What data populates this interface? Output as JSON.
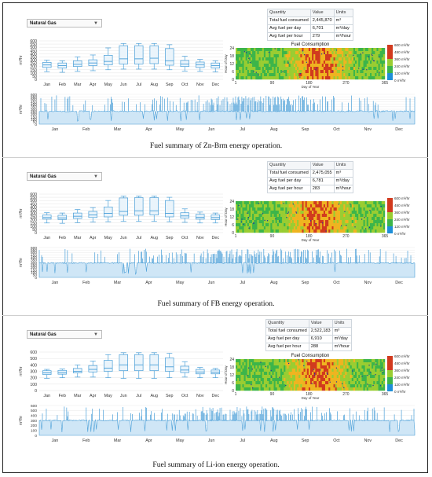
{
  "panels": [
    {
      "dropdown_value": "Natural Gas",
      "caption": "Fuel summary of Zn-Brm energy operation.",
      "table": {
        "headers": [
          "Quantity",
          "Value",
          "Units"
        ],
        "rows": [
          [
            "Total fuel consumed",
            "2,445,870",
            "m³"
          ],
          [
            "Avg fuel per day",
            "6,701",
            "m³/day"
          ],
          [
            "Avg fuel per hour",
            "279",
            "m³/hour"
          ]
        ]
      }
    },
    {
      "dropdown_value": "Natural Gas",
      "caption": "Fuel summary of FB energy operation.",
      "table": {
        "headers": [
          "Quantity",
          "Value",
          "Units"
        ],
        "rows": [
          [
            "Total fuel consumed",
            "2,475,055",
            "m³"
          ],
          [
            "Avg fuel per day",
            "6,781",
            "m³/day"
          ],
          [
            "Avg fuel per hour",
            "283",
            "m³/hour"
          ]
        ]
      }
    },
    {
      "dropdown_value": "Natural Gas",
      "caption": "Fuel summary of Li-ion energy operation.",
      "table": {
        "headers": [
          "Quantity",
          "Value",
          "Units"
        ],
        "rows": [
          [
            "Total fuel consumed",
            "2,522,183",
            "m³"
          ],
          [
            "Avg fuel per day",
            "6,910",
            "m³/day"
          ],
          [
            "Avg fuel per hour",
            "288",
            "m³/hour"
          ]
        ]
      }
    }
  ],
  "chart_data": [
    {
      "type": "box",
      "panel": 0,
      "categories": [
        "Jan",
        "Feb",
        "Mar",
        "Apr",
        "May",
        "Jun",
        "Jul",
        "Aug",
        "Sep",
        "Oct",
        "Nov",
        "Dec"
      ],
      "ylabel": "m³/hr",
      "ylim": [
        0,
        600
      ],
      "yticks": [
        0,
        50,
        100,
        150,
        200,
        250,
        300,
        350,
        400,
        450,
        500,
        550,
        600
      ],
      "boxes": [
        {
          "whisker_low": 120,
          "q1": 185,
          "median": 225,
          "q3": 265,
          "whisker_high": 300
        },
        {
          "whisker_low": 110,
          "q1": 175,
          "median": 215,
          "q3": 255,
          "whisker_high": 290
        },
        {
          "whisker_low": 125,
          "q1": 200,
          "median": 235,
          "q3": 290,
          "whisker_high": 350
        },
        {
          "whisker_low": 135,
          "q1": 215,
          "median": 255,
          "q3": 305,
          "whisker_high": 380
        },
        {
          "whisker_low": 150,
          "q1": 225,
          "median": 280,
          "q3": 375,
          "whisker_high": 490
        },
        {
          "whisker_low": 160,
          "q1": 240,
          "median": 320,
          "q3": 525,
          "whisker_high": 560
        },
        {
          "whisker_low": 160,
          "q1": 240,
          "median": 320,
          "q3": 525,
          "whisker_high": 560
        },
        {
          "whisker_low": 160,
          "q1": 245,
          "median": 330,
          "q3": 525,
          "whisker_high": 560
        },
        {
          "whisker_low": 150,
          "q1": 220,
          "median": 290,
          "q3": 480,
          "whisker_high": 540
        },
        {
          "whisker_low": 130,
          "q1": 200,
          "median": 240,
          "q3": 295,
          "whisker_high": 360
        },
        {
          "whisker_low": 125,
          "q1": 185,
          "median": 230,
          "q3": 270,
          "whisker_high": 310
        },
        {
          "whisker_low": 115,
          "q1": 175,
          "median": 215,
          "q3": 255,
          "whisker_high": 290
        }
      ]
    },
    {
      "type": "heatmap",
      "panel": 0,
      "title": "Fuel Consumption",
      "xlabel": "Day of Year",
      "ylabel": "Hour of Day",
      "xticks": [
        1,
        90,
        180,
        270,
        365
      ],
      "yticks": [
        0,
        6,
        12,
        18,
        24
      ],
      "colorbar": {
        "ticks": [
          0,
          120,
          240,
          360,
          480,
          600
        ],
        "labels": [
          "0 m³/hr",
          "120 m³/hr",
          "240 m³/hr",
          "360 m³/hr",
          "480 m³/hr",
          "600 m³/hr"
        ]
      }
    },
    {
      "type": "area",
      "panel": 0,
      "ylabel": "m³/hr",
      "ylim": [
        0,
        600
      ],
      "yticks": [
        0,
        50,
        100,
        150,
        200,
        250,
        300,
        350,
        400,
        450,
        500,
        550,
        600
      ],
      "xticks": [
        "Jan",
        "Feb",
        "Mar",
        "Apr",
        "May",
        "Jun",
        "Jul",
        "Aug",
        "Sep",
        "Oct",
        "Nov",
        "Dec"
      ],
      "baseline": 260
    },
    {
      "type": "box",
      "panel": 1,
      "categories": [
        "Jan",
        "Feb",
        "Mar",
        "Apr",
        "May",
        "Jun",
        "Jul",
        "Aug",
        "Sep",
        "Oct",
        "Nov",
        "Dec"
      ],
      "ylabel": "m³/hr",
      "ylim": [
        0,
        600
      ],
      "yticks": [
        0,
        50,
        100,
        150,
        200,
        250,
        300,
        350,
        400,
        450,
        500,
        550,
        600
      ],
      "boxes": [
        {
          "whisker_low": 150,
          "q1": 210,
          "median": 235,
          "q3": 275,
          "whisker_high": 310
        },
        {
          "whisker_low": 145,
          "q1": 205,
          "median": 230,
          "q3": 270,
          "whisker_high": 305
        },
        {
          "whisker_low": 155,
          "q1": 220,
          "median": 255,
          "q3": 305,
          "whisker_high": 360
        },
        {
          "whisker_low": 165,
          "q1": 235,
          "median": 275,
          "q3": 330,
          "whisker_high": 390
        },
        {
          "whisker_low": 170,
          "q1": 245,
          "median": 300,
          "q3": 400,
          "whisker_high": 500
        },
        {
          "whisker_low": 175,
          "q1": 270,
          "median": 330,
          "q3": 540,
          "whisker_high": 570
        },
        {
          "whisker_low": 175,
          "q1": 270,
          "median": 340,
          "q3": 545,
          "whisker_high": 570
        },
        {
          "whisker_low": 175,
          "q1": 275,
          "median": 340,
          "q3": 545,
          "whisker_high": 570
        },
        {
          "whisker_low": 170,
          "q1": 245,
          "median": 300,
          "q3": 500,
          "whisker_high": 550
        },
        {
          "whisker_low": 160,
          "q1": 225,
          "median": 260,
          "q3": 310,
          "whisker_high": 370
        },
        {
          "whisker_low": 150,
          "q1": 210,
          "median": 240,
          "q3": 285,
          "whisker_high": 320
        },
        {
          "whisker_low": 150,
          "q1": 205,
          "median": 235,
          "q3": 275,
          "whisker_high": 305
        }
      ]
    },
    {
      "type": "heatmap",
      "panel": 1,
      "xlabel": "Day of Year",
      "ylabel": "Hour of Day",
      "xticks": [
        1,
        90,
        180,
        270,
        365
      ],
      "yticks": [
        0,
        6,
        12,
        18,
        24
      ],
      "colorbar": {
        "ticks": [
          0,
          120,
          240,
          360,
          480,
          600
        ],
        "labels": [
          "0 m³/hr",
          "120 m³/hr",
          "240 m³/hr",
          "360 m³/hr",
          "480 m³/hr",
          "600 m³/hr"
        ]
      }
    },
    {
      "type": "area",
      "panel": 1,
      "ylabel": "m³/hr",
      "ylim": [
        0,
        600
      ],
      "yticks": [
        0,
        50,
        100,
        150,
        200,
        250,
        300,
        350,
        400,
        450,
        500,
        550,
        600
      ],
      "xticks": [
        "Jan",
        "Feb",
        "Mar",
        "Apr",
        "May",
        "Jun",
        "Jul",
        "Aug",
        "Sep",
        "Oct",
        "Nov",
        "Dec"
      ],
      "baseline": 290
    },
    {
      "type": "box",
      "panel": 2,
      "categories": [
        "Jan",
        "Feb",
        "Mar",
        "Apr",
        "May",
        "Jun",
        "Jul",
        "Aug",
        "Sep",
        "Oct",
        "Nov",
        "Dec"
      ],
      "ylabel": "m³/hr",
      "ylim": [
        0,
        600
      ],
      "yticks": [
        0,
        100,
        200,
        300,
        400,
        500,
        600
      ],
      "boxes": [
        {
          "whisker_low": 190,
          "q1": 250,
          "median": 275,
          "q3": 310,
          "whisker_high": 330
        },
        {
          "whisker_low": 200,
          "q1": 255,
          "median": 280,
          "q3": 315,
          "whisker_high": 335
        },
        {
          "whisker_low": 210,
          "q1": 275,
          "median": 300,
          "q3": 345,
          "whisker_high": 400
        },
        {
          "whisker_low": 210,
          "q1": 290,
          "median": 330,
          "q3": 390,
          "whisker_high": 460
        },
        {
          "whisker_low": 200,
          "q1": 300,
          "median": 350,
          "q3": 470,
          "whisker_high": 560
        },
        {
          "whisker_low": 190,
          "q1": 310,
          "median": 400,
          "q3": 560,
          "whisker_high": 590
        },
        {
          "whisker_low": 190,
          "q1": 310,
          "median": 400,
          "q3": 560,
          "whisker_high": 590
        },
        {
          "whisker_low": 190,
          "q1": 310,
          "median": 400,
          "q3": 560,
          "whisker_high": 590
        },
        {
          "whisker_low": 200,
          "q1": 300,
          "median": 370,
          "q3": 510,
          "whisker_high": 580
        },
        {
          "whisker_low": 210,
          "q1": 280,
          "median": 320,
          "q3": 380,
          "whisker_high": 450
        },
        {
          "whisker_low": 200,
          "q1": 260,
          "median": 290,
          "q3": 330,
          "whisker_high": 360
        },
        {
          "whisker_low": 200,
          "q1": 260,
          "median": 285,
          "q3": 320,
          "whisker_high": 345
        }
      ]
    },
    {
      "type": "heatmap",
      "panel": 2,
      "title": "Fuel Consumption",
      "xlabel": "Day of Year",
      "ylabel": "Hour of Day",
      "xticks": [
        1,
        90,
        180,
        270,
        365
      ],
      "yticks": [
        0,
        6,
        12,
        18,
        24
      ],
      "colorbar": {
        "ticks": [
          0,
          120,
          240,
          360,
          480,
          600
        ],
        "labels": [
          "0 m³/hr",
          "120 m³/hr",
          "240 m³/hr",
          "360 m³/hr",
          "480 m³/hr",
          "600 m³/hr"
        ]
      }
    },
    {
      "type": "area",
      "panel": 2,
      "ylabel": "m³/hr",
      "ylim": [
        0,
        600
      ],
      "yticks": [
        0,
        100,
        200,
        300,
        400,
        500,
        600
      ],
      "xticks": [
        "Jan",
        "Feb",
        "Mar",
        "Apr",
        "May",
        "Jun",
        "Jul",
        "Aug",
        "Sep",
        "Oct",
        "Nov",
        "Dec"
      ],
      "baseline": 300
    }
  ],
  "colors": {
    "series": "#4a9fd8",
    "series_fill": "#cfe6f6",
    "grid": "#e3e3e3",
    "axis_text": "#333333"
  }
}
